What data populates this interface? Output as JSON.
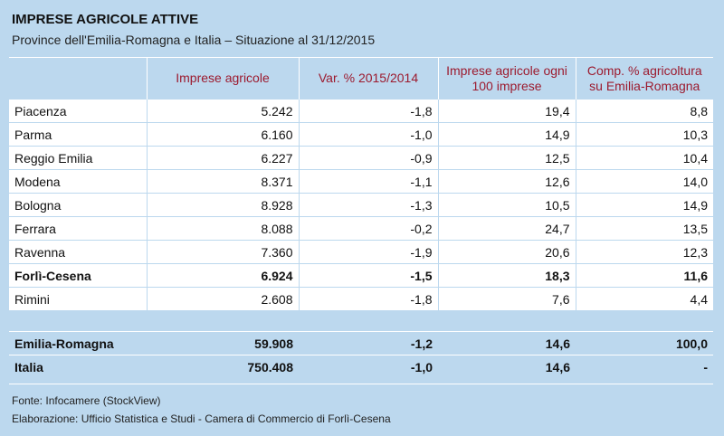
{
  "chart_data": {
    "type": "table",
    "title": "IMPRESE AGRICOLE ATTIVE",
    "subtitle": "Province dell'Emilia-Romagna e Italia – Situazione al 31/12/2015",
    "columns": [
      "",
      "Imprese agricole",
      "Var. % 2015/2014",
      "Imprese agricole ogni 100 imprese",
      "Comp. % agricoltura su Emilia-Romagna"
    ],
    "rows": [
      {
        "name": "Piacenza",
        "values": [
          "5.242",
          "-1,8",
          "19,4",
          "8,8"
        ],
        "bold": false
      },
      {
        "name": "Parma",
        "values": [
          "6.160",
          "-1,0",
          "14,9",
          "10,3"
        ],
        "bold": false
      },
      {
        "name": "Reggio Emilia",
        "values": [
          "6.227",
          "-0,9",
          "12,5",
          "10,4"
        ],
        "bold": false
      },
      {
        "name": "Modena",
        "values": [
          "8.371",
          "-1,1",
          "12,6",
          "14,0"
        ],
        "bold": false
      },
      {
        "name": "Bologna",
        "values": [
          "8.928",
          "-1,3",
          "10,5",
          "14,9"
        ],
        "bold": false
      },
      {
        "name": "Ferrara",
        "values": [
          "8.088",
          "-0,2",
          "24,7",
          "13,5"
        ],
        "bold": false
      },
      {
        "name": "Ravenna",
        "values": [
          "7.360",
          "-1,9",
          "20,6",
          "12,3"
        ],
        "bold": false
      },
      {
        "name": "Forlì-Cesena",
        "values": [
          "6.924",
          "-1,5",
          "18,3",
          "11,6"
        ],
        "bold": true
      },
      {
        "name": "Rimini",
        "values": [
          "2.608",
          "-1,8",
          "7,6",
          "4,4"
        ],
        "bold": false
      }
    ],
    "totals": [
      {
        "name": "Emilia-Romagna",
        "values": [
          "59.908",
          "-1,2",
          "14,6",
          "100,0"
        ]
      },
      {
        "name": "Italia",
        "values": [
          "750.408",
          "-1,0",
          "14,6",
          "-"
        ]
      }
    ]
  },
  "footer": {
    "source": "Fonte: Infocamere (StockView)",
    "elaboration": "Elaborazione: Ufficio Statistica e Studi - Camera di Commercio di Forlì-Cesena"
  },
  "colors": {
    "background": "#bcd8ee",
    "header_text": "#9c1a2e",
    "cell_background": "#ffffff"
  }
}
